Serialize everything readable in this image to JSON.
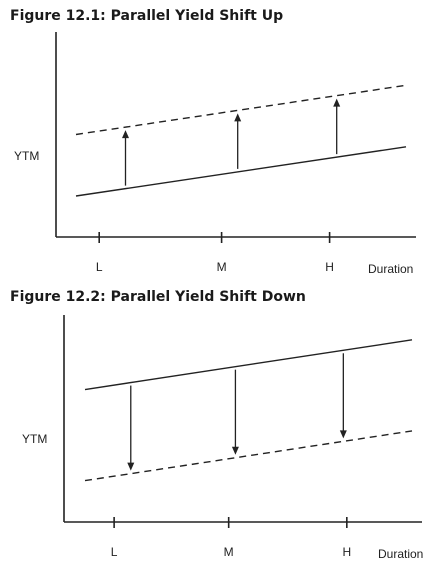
{
  "colors": {
    "ink": "#222222",
    "background": "#ffffff"
  },
  "chart_data": [
    {
      "type": "line",
      "title": "Figure 12.1:  Parallel Yield Shift Up",
      "xlabel": "Duration",
      "ylabel": "YTM",
      "categories": [
        "L",
        "M",
        "H"
      ],
      "grid": false,
      "series": [
        {
          "style": "solid",
          "x": [
            0,
            1
          ],
          "y": [
            1.0,
            2.2
          ]
        },
        {
          "style": "dashed",
          "x": [
            0,
            1
          ],
          "y": [
            2.5,
            3.7
          ]
        }
      ],
      "arrows": [
        {
          "x": 0.15,
          "from_series": 0,
          "to_series": 1,
          "direction": "up"
        },
        {
          "x": 0.49,
          "from_series": 0,
          "to_series": 1,
          "direction": "up"
        },
        {
          "x": 0.79,
          "from_series": 0,
          "to_series": 1,
          "direction": "up"
        }
      ],
      "tick_positions": [
        0.12,
        0.46,
        0.76
      ],
      "ylim": [
        0,
        5
      ]
    },
    {
      "type": "line",
      "title": "Figure 12.2:  Parallel Yield Shift Down",
      "xlabel": "Duration",
      "ylabel": "YTM",
      "categories": [
        "L",
        "M",
        "H"
      ],
      "grid": false,
      "series": [
        {
          "style": "solid",
          "x": [
            0,
            1
          ],
          "y": [
            3.2,
            4.4
          ]
        },
        {
          "style": "dashed",
          "x": [
            0,
            1
          ],
          "y": [
            1.0,
            2.2
          ]
        }
      ],
      "arrows": [
        {
          "x": 0.14,
          "from_series": 0,
          "to_series": 1,
          "direction": "down"
        },
        {
          "x": 0.46,
          "from_series": 0,
          "to_series": 1,
          "direction": "down"
        },
        {
          "x": 0.79,
          "from_series": 0,
          "to_series": 1,
          "direction": "down"
        }
      ],
      "tick_positions": [
        0.14,
        0.46,
        0.79
      ],
      "ylim": [
        0,
        5
      ]
    }
  ]
}
